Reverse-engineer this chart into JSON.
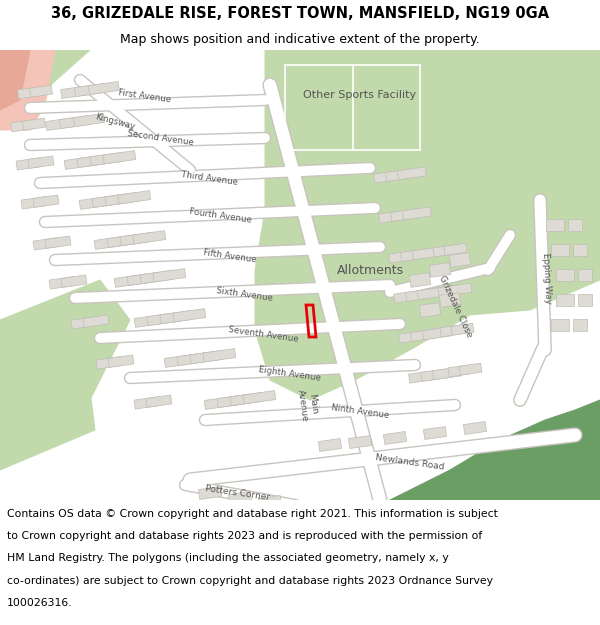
{
  "title_line1": "36, GRIZEDALE RISE, FOREST TOWN, MANSFIELD, NG19 0GA",
  "title_line2": "Map shows position and indicative extent of the property.",
  "footer_lines": [
    "Contains OS data © Crown copyright and database right 2021. This information is subject",
    "to Crown copyright and database rights 2023 and is reproduced with the permission of",
    "HM Land Registry. The polygons (including the associated geometry, namely x, y",
    "co-ordinates) are subject to Crown copyright and database rights 2023 Ordnance Survey",
    "100026316."
  ],
  "map_bg": "#edeae4",
  "green_light": "#c2d9ac",
  "green_dark": "#6b9e65",
  "green_mid": "#8fba84",
  "road_color": "#ffffff",
  "building_fill": "#dedbd4",
  "building_stroke": "#c0bdb6",
  "pink_area": "#f5c4b8",
  "pink_road": "#f0b0a0",
  "highlight_color": "#e8000a",
  "label_color": "#444444",
  "title_fontsize": 10.5,
  "subtitle_fontsize": 9,
  "footer_fontsize": 7.8,
  "label_fontsize": 6.2,
  "sports_label_fontsize": 8,
  "allotments_fontsize": 9
}
